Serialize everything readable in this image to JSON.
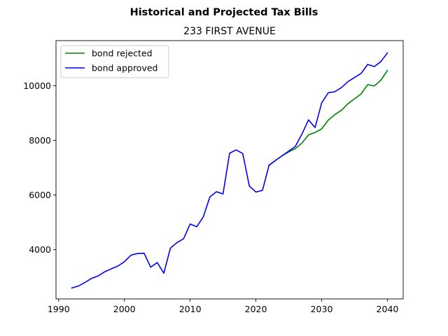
{
  "chart_data": {
    "type": "line",
    "suptitle": "Historical and Projected Tax Bills",
    "title": "233 FIRST AVENUE",
    "xlabel": "",
    "ylabel": "",
    "xlim": [
      1989.6,
      2042.4
    ],
    "ylim": [
      2200,
      11650
    ],
    "xticks": [
      1990,
      2000,
      2010,
      2020,
      2030,
      2040
    ],
    "yticks": [
      4000,
      6000,
      8000,
      10000
    ],
    "grid": false,
    "legend_position": "upper-left",
    "colors": {
      "bond_rejected": "#008000",
      "bond_approved": "#0000ff"
    },
    "series": [
      {
        "name": "bond rejected",
        "color": "#008000",
        "x": [
          2022,
          2023,
          2024,
          2025,
          2026,
          2027,
          2028,
          2029,
          2030,
          2031,
          2032,
          2033,
          2034,
          2035,
          2036,
          2037,
          2038,
          2039,
          2040
        ],
        "y": [
          7090,
          7270,
          7440,
          7580,
          7700,
          7900,
          8200,
          8290,
          8420,
          8740,
          8940,
          9100,
          9340,
          9520,
          9700,
          10040,
          9990,
          10200,
          10560
        ]
      },
      {
        "name": "bond approved",
        "color": "#0000ff",
        "x": [
          1992,
          1993,
          1994,
          1995,
          1996,
          1997,
          1998,
          1999,
          2000,
          2001,
          2002,
          2003,
          2004,
          2005,
          2006,
          2007,
          2008,
          2009,
          2010,
          2011,
          2012,
          2013,
          2014,
          2015,
          2016,
          2017,
          2018,
          2019,
          2020,
          2021,
          2022,
          2023,
          2024,
          2025,
          2026,
          2027,
          2028,
          2029,
          2030,
          2031,
          2032,
          2033,
          2034,
          2035,
          2036,
          2037,
          2038,
          2039,
          2040
        ],
        "y": [
          2600,
          2670,
          2800,
          2950,
          3040,
          3190,
          3300,
          3400,
          3560,
          3800,
          3860,
          3870,
          3360,
          3530,
          3140,
          4060,
          4260,
          4400,
          4940,
          4840,
          5200,
          5930,
          6120,
          6040,
          7530,
          7650,
          7520,
          6330,
          6110,
          6170,
          7090,
          7270,
          7440,
          7610,
          7780,
          8230,
          8750,
          8470,
          9370,
          9740,
          9780,
          9930,
          10150,
          10300,
          10450,
          10780,
          10700,
          10880,
          11200
        ]
      }
    ]
  }
}
